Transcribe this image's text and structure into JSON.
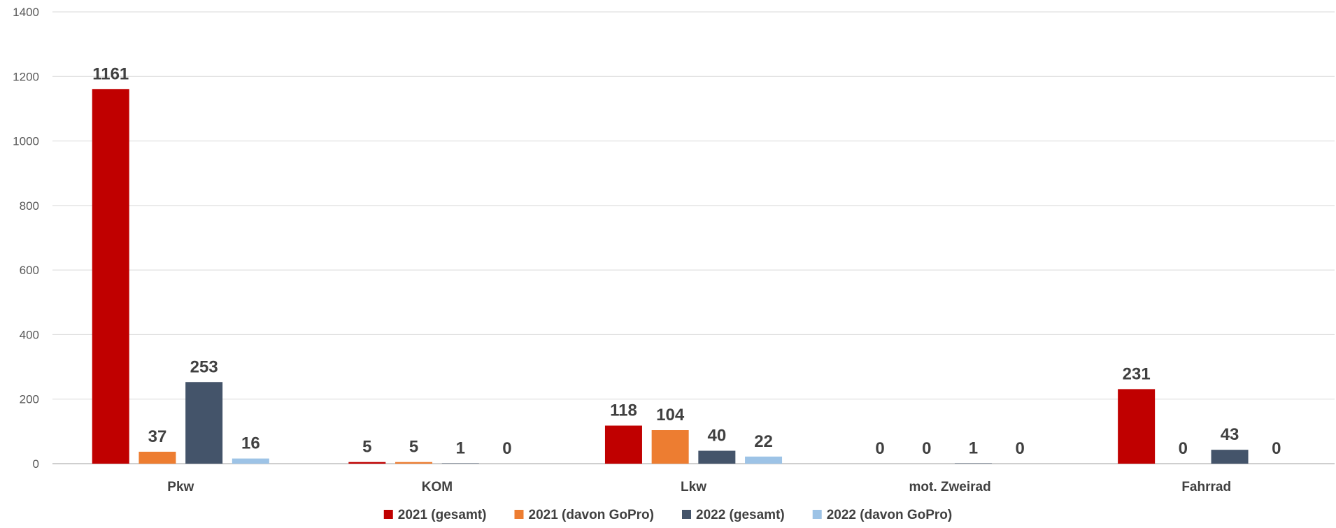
{
  "chart_data": {
    "type": "bar",
    "title": "",
    "xlabel": "",
    "ylabel": "",
    "ylim": [
      0,
      1400
    ],
    "yticks": [
      0,
      200,
      400,
      600,
      800,
      1000,
      1200,
      1400
    ],
    "grid": true,
    "legend_position": "bottom",
    "categories": [
      "Pkw",
      "KOM",
      "Lkw",
      "mot. Zweirad",
      "Fahrrad"
    ],
    "series": [
      {
        "name": "2021 (gesamt)",
        "color": "#c00000",
        "values": [
          1161,
          5,
          118,
          0,
          231
        ]
      },
      {
        "name": "2021 (davon GoPro)",
        "color": "#ed7d31",
        "values": [
          37,
          5,
          104,
          0,
          0
        ]
      },
      {
        "name": "2022 (gesamt)",
        "color": "#44546a",
        "values": [
          253,
          1,
          40,
          1,
          43
        ]
      },
      {
        "name": "2022 (davon GoPro)",
        "color": "#9dc3e6",
        "values": [
          16,
          0,
          22,
          0,
          0
        ]
      }
    ]
  }
}
